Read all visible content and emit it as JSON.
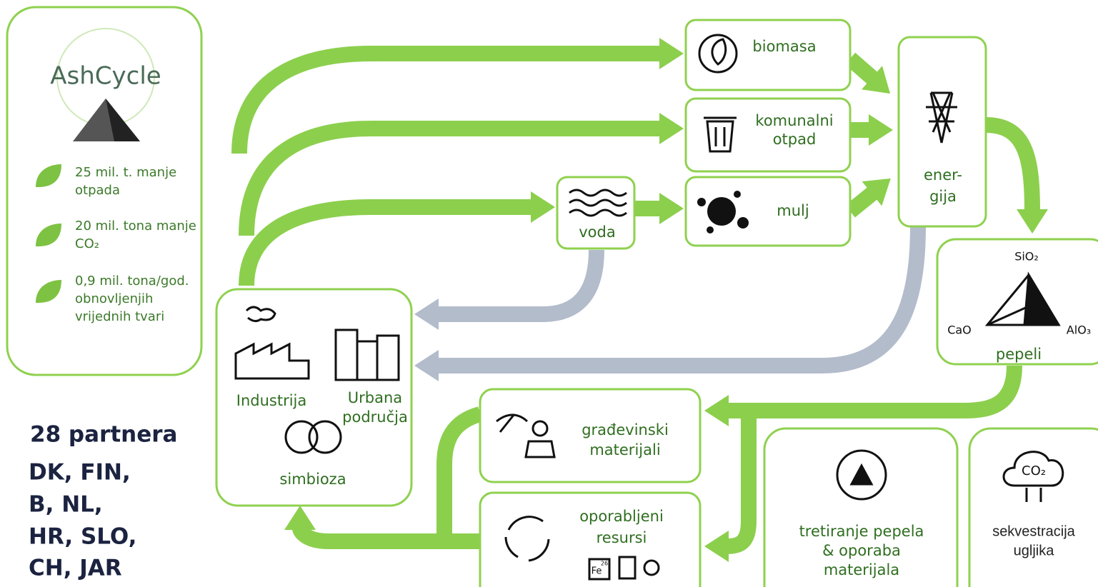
{
  "logo": "AshCycle",
  "stats": [
    [
      "25 mil. t. manje",
      "otpada"
    ],
    [
      "20 mil. tona manje",
      "CO₂"
    ],
    [
      "0,9 mil. tona/god.",
      "obnovljenjih",
      "vrijednih tvari"
    ]
  ],
  "partners": {
    "count": "28 partnera",
    "countries": [
      "DK, FIN,",
      "B, NL,",
      "HR, SLO,",
      "CH, JAR"
    ]
  },
  "nodes": {
    "biomasa": [
      "biomasa"
    ],
    "komunalni": [
      "komunalni",
      "otpad"
    ],
    "voda": [
      "voda"
    ],
    "mulj": [
      "mulj"
    ],
    "energija": [
      "ener-",
      "gija"
    ],
    "pepeli": {
      "label": "pepeli",
      "oxides": [
        "SiO₂",
        "CaO",
        "AlO₃"
      ]
    },
    "industrija": [
      "Industrija"
    ],
    "urbana": [
      "Urbana",
      "područja"
    ],
    "simbioza": [
      "simbioza"
    ],
    "gradevinski": [
      "građevinski",
      "materijali"
    ],
    "oporabljeni": {
      "lines": [
        "oporabljeni",
        "resursi"
      ],
      "element": "Fe",
      "number": "26"
    },
    "tretiranje": [
      "tretiranje pepela",
      "& oporaba",
      "materijala"
    ],
    "sekvestracija": {
      "lines": [
        "sekvestracija",
        "ugljika"
      ],
      "cloud": "CO₂"
    }
  }
}
